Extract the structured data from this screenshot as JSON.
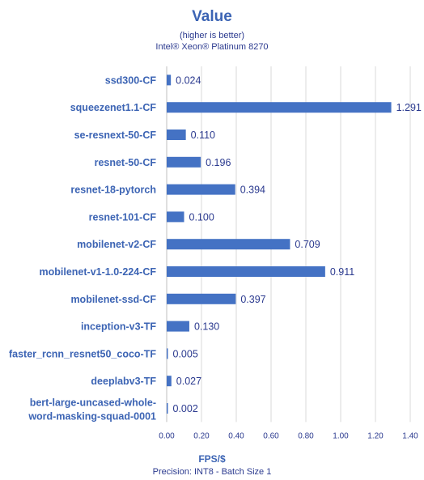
{
  "chart_data": {
    "type": "bar",
    "orientation": "horizontal",
    "title": "Value",
    "subtitle": "(higher is better)",
    "subtitle2": "Intel® Xeon® Platinum 8270",
    "xlabel": "FPS/$",
    "footnote": "Precision: INT8 - Batch Size 1",
    "categories": [
      "ssd300-CF",
      "squeezenet1.1-CF",
      "se-resnext-50-CF",
      "resnet-50-CF",
      "resnet-18-pytorch",
      "resnet-101-CF",
      "mobilenet-v2-CF",
      "mobilenet-v1-1.0-224-CF",
      "mobilenet-ssd-CF",
      "inception-v3-TF",
      "faster_rcnn_resnet50_coco-TF",
      "deeplabv3-TF",
      "bert-large-uncased-whole-word-masking-squad-0001"
    ],
    "values": [
      0.024,
      1.291,
      0.11,
      0.196,
      0.394,
      0.1,
      0.709,
      0.911,
      0.397,
      0.13,
      0.005,
      0.027,
      0.002
    ],
    "value_labels": [
      "0.024",
      "1.291",
      "0.110",
      "0.196",
      "0.394",
      "0.100",
      "0.709",
      "0.911",
      "0.397",
      "0.130",
      "0.005",
      "0.027",
      "0.002"
    ],
    "xlim": [
      0,
      1.4
    ],
    "xticks": [
      "0.00",
      "0.20",
      "0.40",
      "0.60",
      "0.80",
      "1.00",
      "1.20",
      "1.40"
    ],
    "grid": "vertical",
    "bar_color": "#4472c4",
    "grid_color": "#d9d9d9"
  }
}
